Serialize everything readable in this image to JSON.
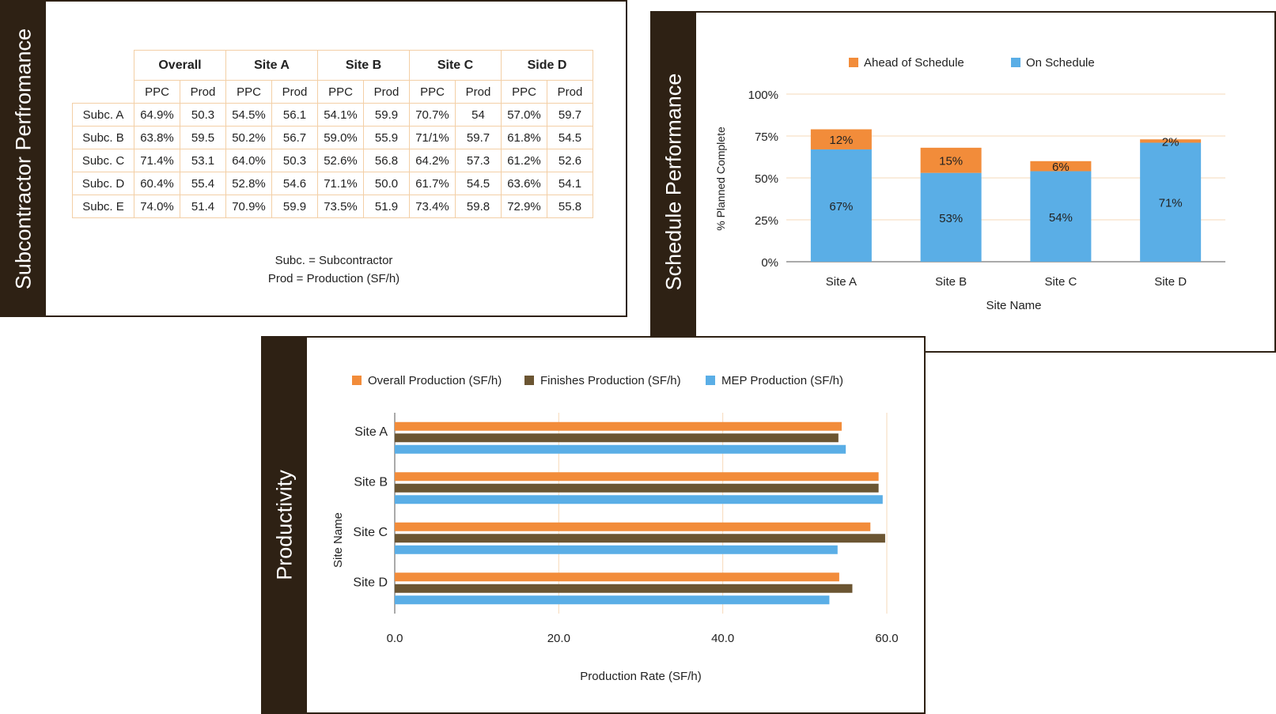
{
  "table_panel": {
    "title": "Subcontractor Perfromance",
    "groups": [
      "Overall",
      "Site A",
      "Site B",
      "Site C",
      "Side D"
    ],
    "subheaders": [
      "PPC",
      "Prod"
    ],
    "rows": [
      {
        "label": "Subc. A",
        "cells": [
          "64.9%",
          "50.3",
          "54.5%",
          "56.1",
          "54.1%",
          "59.9",
          "70.7%",
          "54",
          "57.0%",
          "59.7"
        ]
      },
      {
        "label": "Subc. B",
        "cells": [
          "63.8%",
          "59.5",
          "50.2%",
          "56.7",
          "59.0%",
          "55.9",
          "71/1%",
          "59.7",
          "61.8%",
          "54.5"
        ]
      },
      {
        "label": "Subc. C",
        "cells": [
          "71.4%",
          "53.1",
          "64.0%",
          "50.3",
          "52.6%",
          "56.8",
          "64.2%",
          "57.3",
          "61.2%",
          "52.6"
        ]
      },
      {
        "label": "Subc. D",
        "cells": [
          "60.4%",
          "55.4",
          "52.8%",
          "54.6",
          "71.1%",
          "50.0",
          "61.7%",
          "54.5",
          "63.6%",
          "54.1"
        ]
      },
      {
        "label": "Subc. E",
        "cells": [
          "74.0%",
          "51.4",
          "70.9%",
          "59.9",
          "73.5%",
          "51.9",
          "73.4%",
          "59.8",
          "72.9%",
          "55.8"
        ]
      }
    ],
    "notes": [
      "Subc. = Subcontractor",
      "Prod = Production (SF/h)"
    ]
  },
  "schedule_panel": {
    "title": "Schedule Performance"
  },
  "productivity_panel": {
    "title": "Productivity"
  },
  "chart_data": [
    {
      "type": "bar",
      "stacked": true,
      "title": "Schedule Performance",
      "categories": [
        "Site A",
        "Site B",
        "Site C",
        "Site D"
      ],
      "series": [
        {
          "name": "On Schedule",
          "values": [
            67,
            53,
            54,
            71
          ],
          "labels": [
            "67%",
            "53%",
            "54%",
            "71%"
          ],
          "color": "#5aaee6"
        },
        {
          "name": "Ahead of Schedule",
          "values": [
            12,
            15,
            6,
            2
          ],
          "labels": [
            "12%",
            "15%",
            "6%",
            "2%"
          ],
          "color": "#f28c3a"
        }
      ],
      "legend_order": [
        "Ahead of Schedule",
        "On Schedule"
      ],
      "xlabel": "Site Name",
      "ylabel": "% Planned Complete",
      "ylim": [
        0,
        100
      ],
      "yticks": [
        "0%",
        "25%",
        "50%",
        "75%",
        "100%"
      ],
      "legend": "top"
    },
    {
      "type": "bar",
      "orientation": "horizontal",
      "title": "Productivity",
      "categories": [
        "Site A",
        "Site B",
        "Site C",
        "Site D"
      ],
      "series": [
        {
          "name": "Overall Production (SF/h)",
          "values": [
            54.5,
            59.0,
            58.0,
            54.2
          ],
          "color": "#f28c3a"
        },
        {
          "name": "Finishes Production (SF/h)",
          "values": [
            54.1,
            59.0,
            59.8,
            55.8
          ],
          "color": "#6b5532"
        },
        {
          "name": "MEP Production (SF/h)",
          "values": [
            55.0,
            59.5,
            54.0,
            53.0
          ],
          "color": "#5aaee6"
        }
      ],
      "xlabel": "Production Rate (SF/h)",
      "ylabel": "Site Name",
      "xlim": [
        0,
        60
      ],
      "xticks": [
        "0.0",
        "20.0",
        "40.0",
        "60.0"
      ],
      "legend": "top"
    }
  ]
}
